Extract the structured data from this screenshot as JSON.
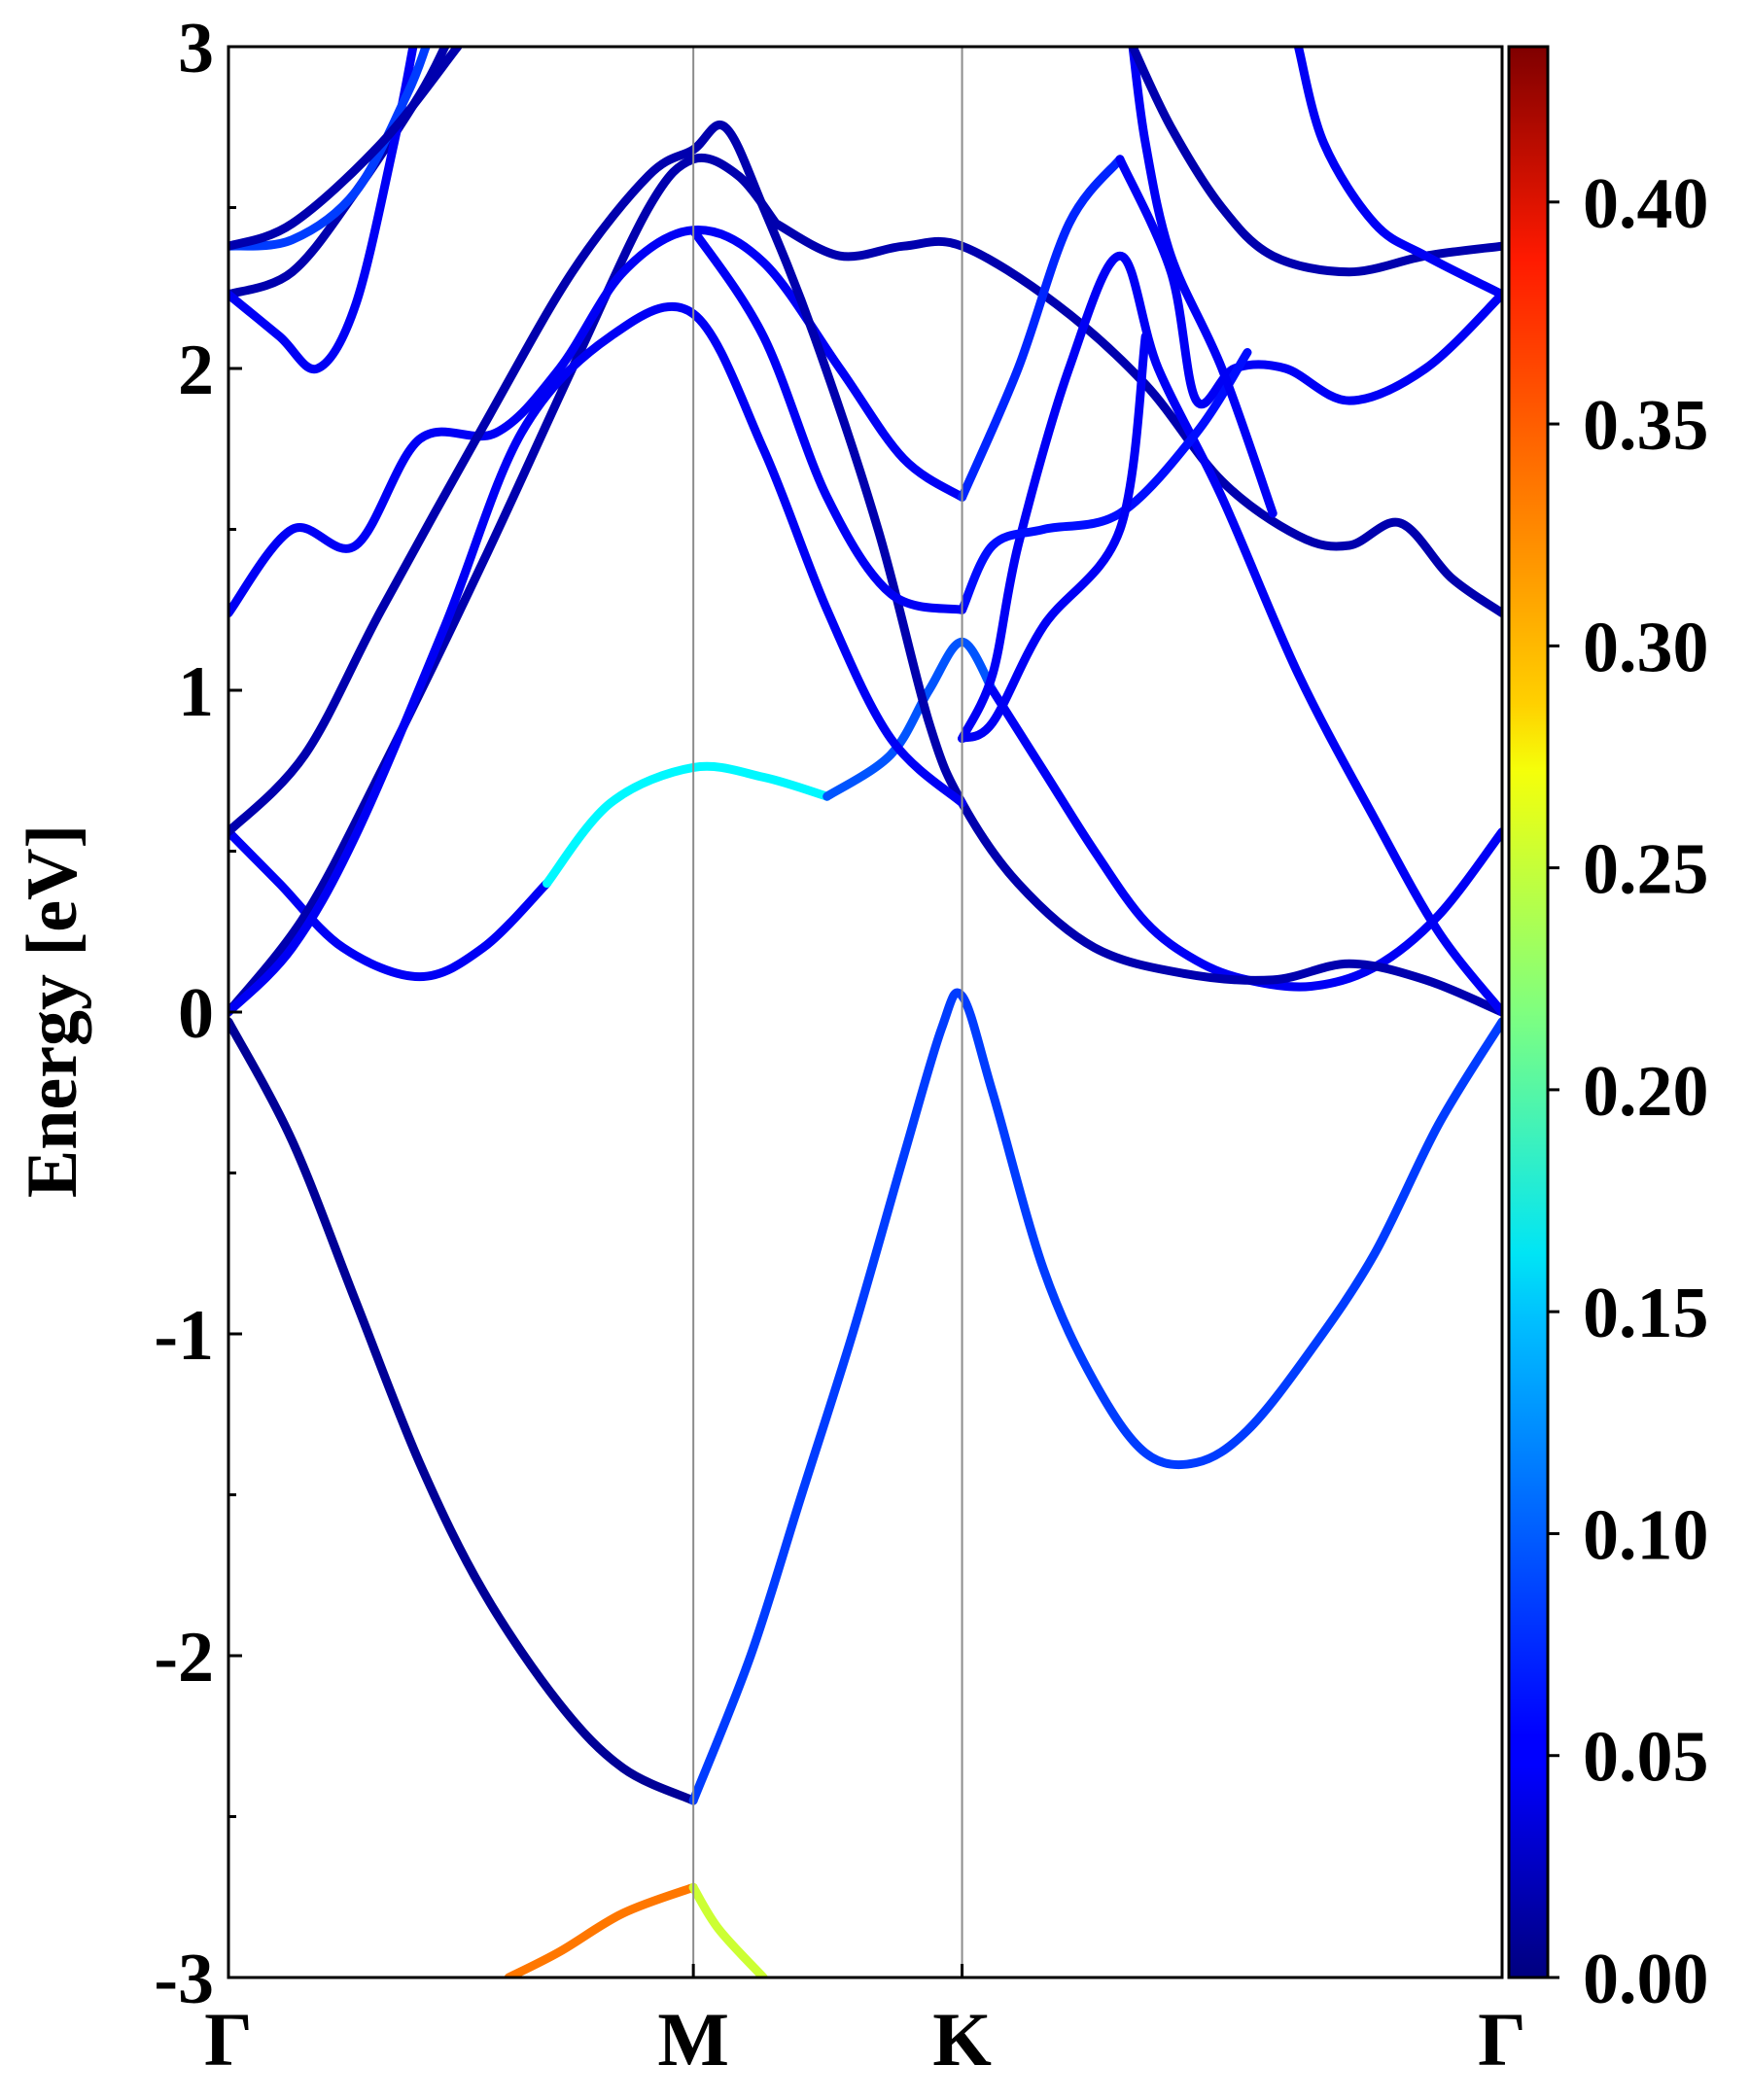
{
  "chart_data": {
    "type": "line",
    "ylabel": "Energy [eV]",
    "ylim": [
      -3,
      3
    ],
    "yticks": [
      {
        "value": 3,
        "label": "3"
      },
      {
        "value": 2,
        "label": "2"
      },
      {
        "value": 1,
        "label": "1"
      },
      {
        "value": 0,
        "label": "0"
      },
      {
        "value": -1,
        "label": "-1"
      },
      {
        "value": -2,
        "label": "-2"
      },
      {
        "value": -3,
        "label": "-3"
      }
    ],
    "kpoints": [
      {
        "pos": 0.0,
        "label": "Γ"
      },
      {
        "pos": 0.365,
        "label": "M"
      },
      {
        "pos": 0.576,
        "label": "K"
      },
      {
        "pos": 1.0,
        "label": "Γ"
      }
    ],
    "colorbar": {
      "min": 0.0,
      "max": 0.435,
      "colormap": "jet",
      "ticks": [
        "0.00",
        "0.05",
        "0.10",
        "0.15",
        "0.20",
        "0.25",
        "0.30",
        "0.35",
        "0.40"
      ]
    },
    "series": [
      {
        "weight": 0.01,
        "points": [
          [
            0,
            -0.03
          ],
          [
            0.05,
            -0.4
          ],
          [
            0.1,
            -0.9
          ],
          [
            0.15,
            -1.4
          ],
          [
            0.2,
            -1.8
          ],
          [
            0.26,
            -2.15
          ],
          [
            0.31,
            -2.35
          ],
          [
            0.365,
            -2.45
          ]
        ]
      },
      {
        "weight": 0.08,
        "points": [
          [
            0.365,
            -2.45
          ],
          [
            0.41,
            -2.0
          ],
          [
            0.45,
            -1.5
          ],
          [
            0.49,
            -1.0
          ],
          [
            0.53,
            -0.45
          ],
          [
            0.56,
            -0.05
          ],
          [
            0.576,
            0.05
          ],
          [
            0.6,
            -0.25
          ],
          [
            0.64,
            -0.8
          ],
          [
            0.68,
            -1.15
          ],
          [
            0.72,
            -1.37
          ],
          [
            0.76,
            -1.4
          ],
          [
            0.8,
            -1.3
          ],
          [
            0.85,
            -1.05
          ],
          [
            0.9,
            -0.75
          ],
          [
            0.95,
            -0.35
          ],
          [
            1.0,
            -0.03
          ]
        ]
      },
      {
        "weight": 0.33,
        "points": [
          [
            0.22,
            -3.0
          ],
          [
            0.26,
            -2.92
          ],
          [
            0.31,
            -2.8
          ],
          [
            0.365,
            -2.72
          ]
        ]
      },
      {
        "weight": 0.25,
        "points": [
          [
            0.365,
            -2.72
          ],
          [
            0.385,
            -2.85
          ],
          [
            0.42,
            -3.0
          ]
        ]
      },
      {
        "weight": 0.05,
        "points": [
          [
            0,
            0.56
          ],
          [
            0.04,
            0.4
          ],
          [
            0.09,
            0.2
          ],
          [
            0.15,
            0.11
          ],
          [
            0.2,
            0.2
          ],
          [
            0.25,
            0.4
          ]
        ]
      },
      {
        "weight": 0.16,
        "points": [
          [
            0.25,
            0.4
          ],
          [
            0.3,
            0.65
          ],
          [
            0.365,
            0.76
          ],
          [
            0.42,
            0.73
          ],
          [
            0.47,
            0.67
          ]
        ]
      },
      {
        "weight": 0.09,
        "points": [
          [
            0.47,
            0.67
          ],
          [
            0.52,
            0.8
          ],
          [
            0.55,
            1.0
          ],
          [
            0.576,
            1.15
          ],
          [
            0.6,
            1.0
          ]
        ]
      },
      {
        "weight": 0.05,
        "points": [
          [
            0.6,
            1.0
          ],
          [
            0.64,
            0.75
          ],
          [
            0.68,
            0.5
          ],
          [
            0.72,
            0.28
          ],
          [
            0.76,
            0.16
          ],
          [
            0.8,
            0.1
          ],
          [
            0.85,
            0.08
          ],
          [
            0.9,
            0.14
          ],
          [
            0.95,
            0.3
          ],
          [
            1.0,
            0.56
          ]
        ]
      },
      {
        "weight": 0.02,
        "points": [
          [
            0,
            0.0
          ],
          [
            0.06,
            0.3
          ],
          [
            0.12,
            0.75
          ],
          [
            0.2,
            1.4
          ],
          [
            0.27,
            2.0
          ],
          [
            0.33,
            2.5
          ],
          [
            0.365,
            2.65
          ],
          [
            0.4,
            2.6
          ],
          [
            0.43,
            2.45
          ]
        ]
      },
      {
        "weight": 0.02,
        "points": [
          [
            0.43,
            2.45
          ],
          [
            0.48,
            2.35
          ],
          [
            0.53,
            2.38
          ],
          [
            0.576,
            2.38
          ],
          [
            0.65,
            2.2
          ],
          [
            0.72,
            1.95
          ],
          [
            0.78,
            1.65
          ],
          [
            0.84,
            1.48
          ],
          [
            0.88,
            1.45
          ],
          [
            0.92,
            1.52
          ],
          [
            0.96,
            1.35
          ],
          [
            1.0,
            1.24
          ]
        ]
      },
      {
        "weight": 0.05,
        "points": [
          [
            0,
            1.24
          ],
          [
            0.05,
            1.5
          ],
          [
            0.1,
            1.45
          ],
          [
            0.15,
            1.78
          ],
          [
            0.21,
            1.8
          ],
          [
            0.26,
            2.0
          ],
          [
            0.31,
            2.3
          ],
          [
            0.365,
            2.43
          ],
          [
            0.42,
            2.33
          ],
          [
            0.48,
            2.0
          ],
          [
            0.53,
            1.72
          ],
          [
            0.576,
            1.6
          ]
        ]
      },
      {
        "weight": 0.07,
        "points": [
          [
            0.576,
            1.6
          ],
          [
            0.62,
            2.0
          ],
          [
            0.66,
            2.45
          ],
          [
            0.7,
            2.65
          ]
        ]
      },
      {
        "weight": 0.05,
        "points": [
          [
            0.7,
            2.65
          ],
          [
            0.74,
            2.3
          ],
          [
            0.76,
            1.9
          ],
          [
            0.79,
            2.0
          ],
          [
            0.83,
            2.0
          ],
          [
            0.88,
            1.9
          ],
          [
            0.94,
            2.0
          ],
          [
            1.0,
            2.23
          ]
        ]
      },
      {
        "weight": 0.02,
        "points": [
          [
            0,
            0.56
          ],
          [
            0.06,
            0.8
          ],
          [
            0.12,
            1.25
          ],
          [
            0.2,
            1.82
          ],
          [
            0.27,
            2.3
          ],
          [
            0.33,
            2.6
          ],
          [
            0.365,
            2.68
          ],
          [
            0.39,
            2.75
          ],
          [
            0.42,
            2.5
          ],
          [
            0.46,
            2.1
          ],
          [
            0.51,
            1.5
          ],
          [
            0.55,
            0.9
          ],
          [
            0.576,
            0.65
          ],
          [
            0.62,
            0.4
          ],
          [
            0.68,
            0.2
          ],
          [
            0.75,
            0.12
          ],
          [
            0.82,
            0.1
          ],
          [
            0.88,
            0.15
          ],
          [
            0.94,
            0.1
          ],
          [
            1.0,
            0.0
          ]
        ]
      },
      {
        "weight": 0.05,
        "points": [
          [
            0,
            0.0
          ],
          [
            0.05,
            0.2
          ],
          [
            0.1,
            0.55
          ],
          [
            0.17,
            1.2
          ],
          [
            0.23,
            1.8
          ],
          [
            0.3,
            2.1
          ],
          [
            0.365,
            2.17
          ],
          [
            0.42,
            1.75
          ],
          [
            0.47,
            1.25
          ],
          [
            0.52,
            0.85
          ],
          [
            0.576,
            0.65
          ]
        ]
      },
      {
        "weight": 0.05,
        "points": [
          [
            0.576,
            0.85
          ],
          [
            0.6,
            1.05
          ],
          [
            0.62,
            1.45
          ],
          [
            0.66,
            2.0
          ],
          [
            0.7,
            2.35
          ],
          [
            0.73,
            2.0
          ],
          [
            0.78,
            1.6
          ],
          [
            0.84,
            1.05
          ],
          [
            0.9,
            0.6
          ],
          [
            0.95,
            0.25
          ],
          [
            1.0,
            0.0
          ]
        ]
      },
      {
        "weight": 0.06,
        "points": [
          [
            0.576,
            1.25
          ],
          [
            0.6,
            1.45
          ],
          [
            0.64,
            1.5
          ],
          [
            0.7,
            1.55
          ],
          [
            0.76,
            1.8
          ],
          [
            0.8,
            2.05
          ]
        ]
      },
      {
        "weight": 0.02,
        "points": [
          [
            0,
            2.23
          ],
          [
            0.05,
            2.3
          ],
          [
            0.1,
            2.55
          ],
          [
            0.15,
            2.85
          ],
          [
            0.17,
            3.0
          ]
        ]
      },
      {
        "weight": 0.05,
        "points": [
          [
            0,
            2.23
          ],
          [
            0.04,
            2.1
          ],
          [
            0.07,
            2.0
          ],
          [
            0.1,
            2.2
          ],
          [
            0.13,
            2.7
          ],
          [
            0.145,
            3.0
          ]
        ]
      },
      {
        "weight": 0.08,
        "points": [
          [
            0,
            2.38
          ],
          [
            0.05,
            2.4
          ],
          [
            0.1,
            2.55
          ],
          [
            0.14,
            2.85
          ],
          [
            0.155,
            3.0
          ]
        ]
      },
      {
        "weight": 0.02,
        "points": [
          [
            0,
            2.38
          ],
          [
            0.05,
            2.45
          ],
          [
            0.12,
            2.7
          ],
          [
            0.18,
            3.0
          ]
        ]
      },
      {
        "weight": 0.05,
        "points": [
          [
            0.365,
            2.43
          ],
          [
            0.42,
            2.1
          ],
          [
            0.47,
            1.6
          ],
          [
            0.52,
            1.3
          ],
          [
            0.576,
            1.25
          ]
        ]
      },
      {
        "weight": 0.05,
        "points": [
          [
            0.576,
            0.85
          ],
          [
            0.6,
            0.9
          ],
          [
            0.64,
            1.2
          ],
          [
            0.7,
            1.5
          ],
          [
            0.72,
            2.1
          ]
        ]
      },
      {
        "weight": 0.05,
        "points": [
          [
            0.71,
            3.0
          ],
          [
            0.72,
            2.7
          ],
          [
            0.74,
            2.35
          ],
          [
            0.78,
            2.0
          ],
          [
            0.82,
            1.55
          ]
        ]
      },
      {
        "weight": 0.02,
        "points": [
          [
            0.71,
            3.0
          ],
          [
            0.74,
            2.75
          ],
          [
            0.78,
            2.5
          ],
          [
            0.82,
            2.35
          ],
          [
            0.88,
            2.3
          ],
          [
            0.94,
            2.35
          ],
          [
            1.0,
            2.38
          ]
        ]
      },
      {
        "weight": 0.05,
        "points": [
          [
            0.84,
            3.0
          ],
          [
            0.86,
            2.7
          ],
          [
            0.9,
            2.45
          ],
          [
            0.94,
            2.35
          ],
          [
            1.0,
            2.23
          ]
        ]
      }
    ]
  }
}
